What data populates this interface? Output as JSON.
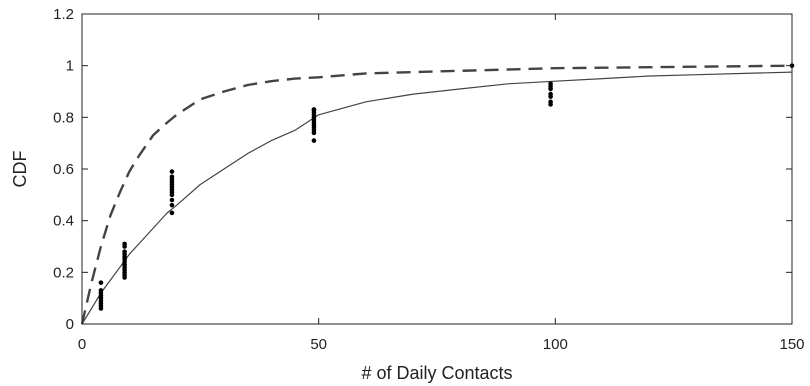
{
  "chart_data": {
    "type": "scatter",
    "xlabel": "# of Daily Contacts",
    "ylabel": "CDF",
    "xlim": [
      0,
      150
    ],
    "ylim": [
      0,
      1.2
    ],
    "x_ticks": [
      0,
      50,
      100,
      150
    ],
    "y_ticks": [
      0,
      0.2,
      0.4,
      0.6,
      0.8,
      1,
      1.2
    ],
    "grid": false,
    "colors": {
      "axis": "#222222",
      "points": "#000000",
      "solid_curve": "#444444",
      "dashed_curve": "#444444"
    },
    "scatter": {
      "x": [
        4,
        4,
        4,
        4,
        4,
        4,
        4,
        4,
        4,
        9,
        9,
        9,
        9,
        9,
        9,
        9,
        9,
        9,
        9,
        9,
        9,
        9,
        19,
        19,
        19,
        19,
        19,
        19,
        19,
        19,
        19,
        19,
        19,
        19,
        49,
        49,
        49,
        49,
        49,
        49,
        49,
        49,
        49,
        49,
        49,
        49,
        99,
        99,
        99,
        99,
        99,
        99,
        99,
        150
      ],
      "y": [
        0.06,
        0.07,
        0.08,
        0.09,
        0.1,
        0.11,
        0.12,
        0.13,
        0.16,
        0.18,
        0.19,
        0.2,
        0.21,
        0.22,
        0.23,
        0.24,
        0.25,
        0.26,
        0.27,
        0.28,
        0.3,
        0.31,
        0.43,
        0.46,
        0.48,
        0.5,
        0.51,
        0.52,
        0.53,
        0.54,
        0.55,
        0.56,
        0.57,
        0.59,
        0.71,
        0.74,
        0.75,
        0.76,
        0.77,
        0.78,
        0.79,
        0.8,
        0.81,
        0.82,
        0.83,
        0.83,
        0.85,
        0.86,
        0.88,
        0.89,
        0.91,
        0.92,
        0.93,
        1.0
      ]
    },
    "series": [
      {
        "style": "solid",
        "x": [
          0,
          2,
          4,
          6,
          8,
          10,
          12,
          15,
          18,
          20,
          25,
          30,
          35,
          40,
          45,
          50,
          60,
          70,
          80,
          90,
          100,
          110,
          120,
          130,
          140,
          150
        ],
        "y": [
          0,
          0.06,
          0.12,
          0.17,
          0.22,
          0.27,
          0.31,
          0.37,
          0.43,
          0.46,
          0.54,
          0.6,
          0.66,
          0.71,
          0.75,
          0.81,
          0.86,
          0.89,
          0.91,
          0.93,
          0.94,
          0.95,
          0.96,
          0.965,
          0.97,
          0.975
        ]
      },
      {
        "style": "dashed",
        "x": [
          0,
          2,
          4,
          6,
          8,
          10,
          12,
          15,
          18,
          20,
          25,
          30,
          35,
          40,
          45,
          50,
          60,
          70,
          80,
          90,
          100,
          110,
          120,
          130,
          140,
          150
        ],
        "y": [
          0,
          0.16,
          0.3,
          0.42,
          0.51,
          0.59,
          0.65,
          0.73,
          0.78,
          0.81,
          0.87,
          0.9,
          0.925,
          0.94,
          0.95,
          0.955,
          0.97,
          0.975,
          0.98,
          0.985,
          0.99,
          0.992,
          0.994,
          0.996,
          0.998,
          1.0
        ]
      }
    ]
  }
}
